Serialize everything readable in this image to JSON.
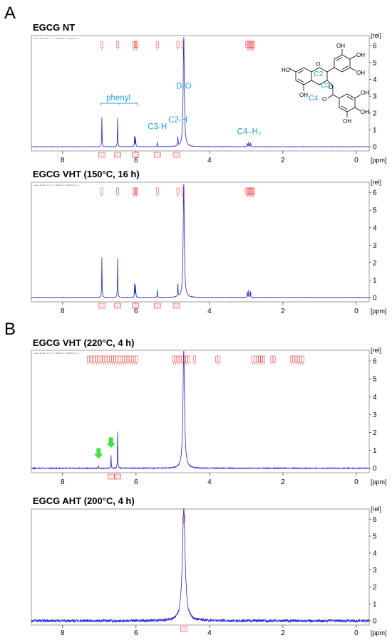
{
  "colors": {
    "spectrum": "#2222dd",
    "peak_label": "#ff2222",
    "annotation": "#1aa3d9",
    "arrow": "#33ee33",
    "frame": "#888888"
  },
  "panel_labels": {
    "A": "A",
    "B": "B"
  },
  "axis": {
    "x_unit": "[ppm]",
    "y_unit": "[rel]",
    "x_range": [
      8.85,
      -0.35
    ],
    "x_ticks": [
      8,
      6,
      4,
      2,
      0
    ],
    "y_ticks": [
      0,
      1,
      2,
      3,
      4,
      5,
      6
    ]
  },
  "chart_data": [
    {
      "type": "line",
      "title": "EGCG NT",
      "header_text": "exam-data 37 1 C:\\Bruker\\TopSpin1.3",
      "ylim": [
        -0.25,
        6.6
      ],
      "noise": 0.01,
      "peaks": [
        {
          "ppm": 6.93,
          "height": 1.75
        },
        {
          "ppm": 6.5,
          "height": 1.75
        },
        {
          "ppm": 6.04,
          "height": 0.62
        },
        {
          "ppm": 6.01,
          "height": 0.55
        },
        {
          "ppm": 5.42,
          "height": 0.3
        },
        {
          "ppm": 4.86,
          "height": 0.62
        },
        {
          "ppm": 4.7,
          "height": 6.6,
          "width": 0.018
        },
        {
          "ppm": 2.97,
          "height": 0.22
        },
        {
          "ppm": 2.93,
          "height": 0.3
        },
        {
          "ppm": 2.88,
          "height": 0.25
        }
      ],
      "peak_label_positions_ppm": [
        6.93,
        6.5,
        6.06,
        6.02,
        5.98,
        5.42,
        4.86,
        4.72,
        2.98,
        2.95,
        2.92,
        2.89,
        2.86,
        2.83,
        2.8
      ],
      "integral_positions_ppm": [
        6.93,
        6.5,
        6.02,
        5.42,
        4.9
      ],
      "annotations": [
        {
          "id": "phenyl",
          "text": "phenyl",
          "ppm": 6.48,
          "y": 2.75
        },
        {
          "id": "c3h",
          "text": "C3-H",
          "ppm": 5.42,
          "y": 1.05
        },
        {
          "id": "c2h",
          "text": "C2-H",
          "ppm": 4.86,
          "y": 1.45
        },
        {
          "id": "d2o",
          "text": "D₂O",
          "ppm": 4.7,
          "y": 3.45
        },
        {
          "id": "c4h2",
          "text": "C4–H₂",
          "ppm": 2.92,
          "y": 0.75
        }
      ],
      "structure_labels": {
        "c2": "C2",
        "c3": "C3",
        "c4": "C4",
        "oh": "OH",
        "ho": "HO",
        "o": "O"
      }
    },
    {
      "type": "line",
      "title": "EGCG VHT (150°C, 16 h)",
      "header_text": "exam-data 38 1 C:\\Bruker\\TopSpin1.3",
      "ylim": [
        -0.25,
        6.6
      ],
      "noise": 0.01,
      "peaks": [
        {
          "ppm": 6.93,
          "height": 2.3
        },
        {
          "ppm": 6.5,
          "height": 2.3
        },
        {
          "ppm": 6.04,
          "height": 0.8
        },
        {
          "ppm": 6.01,
          "height": 0.7
        },
        {
          "ppm": 5.42,
          "height": 0.45
        },
        {
          "ppm": 4.86,
          "height": 0.85
        },
        {
          "ppm": 4.7,
          "height": 6.6,
          "width": 0.018
        },
        {
          "ppm": 2.97,
          "height": 0.35
        },
        {
          "ppm": 2.93,
          "height": 0.45
        },
        {
          "ppm": 2.88,
          "height": 0.38
        }
      ],
      "peak_label_positions_ppm": [
        6.93,
        6.5,
        6.06,
        6.02,
        5.98,
        5.42,
        4.86,
        4.72,
        2.98,
        2.95,
        2.92,
        2.89,
        2.86,
        2.83,
        2.8
      ],
      "integral_positions_ppm": [
        6.93,
        6.5,
        6.02,
        5.42,
        4.9
      ],
      "annotations": []
    },
    {
      "type": "line",
      "title": "EGCG VHT (220°C, 4 h)",
      "header_text": "exam-data 42 1 C:\\Bruker\\TopSpin1.3",
      "ylim": [
        -0.25,
        6.6
      ],
      "noise": 0.025,
      "peaks": [
        {
          "ppm": 7.02,
          "height": 0.12
        },
        {
          "ppm": 6.68,
          "height": 0.75
        },
        {
          "ppm": 6.5,
          "height": 2.1
        },
        {
          "ppm": 4.7,
          "height": 6.6,
          "width": 0.025
        }
      ],
      "peak_label_positions_ppm": [
        7.3,
        7.22,
        7.15,
        7.08,
        7.01,
        6.95,
        6.88,
        6.82,
        6.76,
        6.7,
        6.64,
        6.58,
        6.52,
        6.46,
        6.4,
        6.34,
        6.28,
        6.22,
        6.16,
        6.1,
        6.04,
        5.98,
        4.98,
        4.92,
        4.86,
        4.8,
        4.74,
        4.68,
        4.62,
        4.56,
        4.4,
        3.8,
        3.74,
        2.82,
        2.76,
        2.7,
        2.64,
        2.58,
        2.52,
        2.3,
        2.24,
        1.76,
        1.7,
        1.64,
        1.58,
        1.52,
        1.46
      ],
      "integral_positions_ppm": [
        6.68,
        6.5
      ],
      "arrows_ppm": [
        {
          "ppm": 7.02,
          "y": 0.55
        },
        {
          "ppm": 6.68,
          "y": 1.15
        }
      ],
      "annotations": []
    },
    {
      "type": "line",
      "title": "EGCG AHT (200°C, 4 h)",
      "header_text": "",
      "ylim": [
        -0.25,
        6.6
      ],
      "noise": 0.08,
      "peaks": [
        {
          "ppm": 4.7,
          "height": 6.6,
          "width": 0.045
        }
      ],
      "peak_label_positions_ppm": [
        4.7
      ],
      "integral_positions_ppm": [
        4.7
      ],
      "annotations": []
    }
  ]
}
